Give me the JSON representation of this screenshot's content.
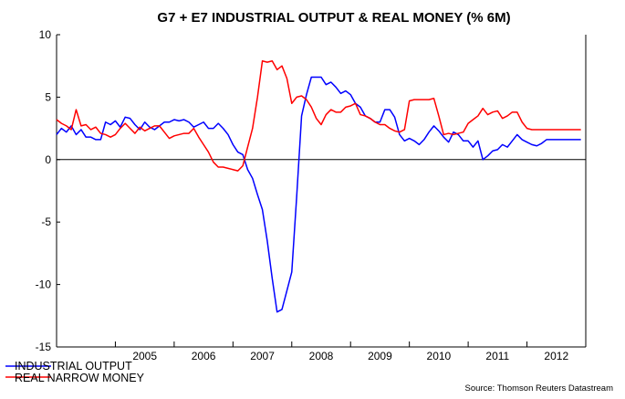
{
  "chart_data": {
    "type": "line",
    "title": "G7 + E7 INDUSTRIAL OUTPUT & REAL MONEY (% 6M)",
    "xlabel": "",
    "ylabel": "",
    "ylim": [
      -15,
      10
    ],
    "y_ticks": [
      10,
      5,
      0,
      -5,
      -10,
      -15
    ],
    "x_range": [
      2004.0,
      2013.0
    ],
    "year_labels": [
      "2005",
      "2006",
      "2007",
      "2008",
      "2009",
      "2010",
      "2011",
      "2012"
    ],
    "zero_line": true,
    "series": [
      {
        "name": "INDUSTRIAL OUTPUT",
        "color": "#0000ff",
        "x": [
          2004.0,
          2004.083,
          2004.167,
          2004.25,
          2004.333,
          2004.417,
          2004.5,
          2004.583,
          2004.667,
          2004.75,
          2004.833,
          2004.917,
          2005.0,
          2005.083,
          2005.167,
          2005.25,
          2005.333,
          2005.417,
          2005.5,
          2005.583,
          2005.667,
          2005.75,
          2005.833,
          2005.917,
          2006.0,
          2006.083,
          2006.167,
          2006.25,
          2006.333,
          2006.417,
          2006.5,
          2006.583,
          2006.667,
          2006.75,
          2006.833,
          2006.917,
          2007.0,
          2007.083,
          2007.167,
          2007.25,
          2007.333,
          2007.417,
          2007.5,
          2007.583,
          2007.667,
          2007.75,
          2007.833,
          2007.917,
          2008.0,
          2008.083,
          2008.167,
          2008.25,
          2008.333,
          2008.417,
          2008.5,
          2008.583,
          2008.667,
          2008.75,
          2008.833,
          2008.917,
          2009.0,
          2009.083,
          2009.167,
          2009.25,
          2009.333,
          2009.417,
          2009.5,
          2009.583,
          2009.667,
          2009.75,
          2009.833,
          2009.917,
          2010.0,
          2010.083,
          2010.167,
          2010.25,
          2010.333,
          2010.417,
          2010.5,
          2010.583,
          2010.667,
          2010.75,
          2010.833,
          2010.917,
          2011.0,
          2011.083,
          2011.167,
          2011.25,
          2011.333,
          2011.417,
          2011.5,
          2011.583,
          2011.667,
          2011.75,
          2011.833,
          2011.917,
          2012.0,
          2012.083,
          2012.167,
          2012.25,
          2012.333,
          2012.417,
          2012.5,
          2012.583,
          2012.667,
          2012.75,
          2012.833,
          2012.917
        ],
        "values": [
          2.0,
          2.5,
          2.2,
          2.7,
          2.0,
          2.4,
          1.8,
          1.8,
          1.6,
          1.6,
          3.0,
          2.8,
          3.1,
          2.6,
          3.4,
          3.3,
          2.8,
          2.4,
          3.0,
          2.6,
          2.4,
          2.7,
          3.0,
          3.0,
          3.2,
          3.1,
          3.2,
          3.0,
          2.6,
          2.8,
          3.0,
          2.5,
          2.5,
          2.9,
          2.5,
          2.0,
          1.2,
          0.6,
          0.4,
          -0.8,
          -1.5,
          -2.8,
          -4.0,
          -6.5,
          -9.5,
          -12.2,
          -12.0,
          -10.5,
          -9.0,
          -3.0,
          3.5,
          5.2,
          6.6,
          6.6,
          6.6,
          6.0,
          6.2,
          5.8,
          5.3,
          5.5,
          5.2,
          4.5,
          4.2,
          3.5,
          3.3,
          3.0,
          3.0,
          4.0,
          4.0,
          3.4,
          2.0,
          1.5,
          1.7,
          1.5,
          1.2,
          1.6,
          2.2,
          2.7,
          2.3,
          1.8,
          1.4,
          2.2,
          2.0,
          1.5,
          1.5,
          1.0,
          1.5,
          0.0,
          0.3,
          0.7,
          0.8,
          1.2,
          1.0,
          1.5,
          2.0,
          1.6,
          1.4,
          1.2,
          1.1,
          1.3,
          1.6,
          1.6,
          1.6,
          1.6,
          1.6,
          1.6,
          1.6,
          1.6
        ]
      },
      {
        "name": "REAL NARROW MONEY",
        "color": "#ff0000",
        "x": [
          2004.0,
          2004.083,
          2004.167,
          2004.25,
          2004.333,
          2004.417,
          2004.5,
          2004.583,
          2004.667,
          2004.75,
          2004.833,
          2004.917,
          2005.0,
          2005.083,
          2005.167,
          2005.25,
          2005.333,
          2005.417,
          2005.5,
          2005.583,
          2005.667,
          2005.75,
          2005.833,
          2005.917,
          2006.0,
          2006.083,
          2006.167,
          2006.25,
          2006.333,
          2006.417,
          2006.5,
          2006.583,
          2006.667,
          2006.75,
          2006.833,
          2006.917,
          2007.0,
          2007.083,
          2007.167,
          2007.25,
          2007.333,
          2007.417,
          2007.5,
          2007.583,
          2007.667,
          2007.75,
          2007.833,
          2007.917,
          2008.0,
          2008.083,
          2008.167,
          2008.25,
          2008.333,
          2008.417,
          2008.5,
          2008.583,
          2008.667,
          2008.75,
          2008.833,
          2008.917,
          2009.0,
          2009.083,
          2009.167,
          2009.25,
          2009.333,
          2009.417,
          2009.5,
          2009.583,
          2009.667,
          2009.75,
          2009.833,
          2009.917,
          2010.0,
          2010.083,
          2010.167,
          2010.25,
          2010.333,
          2010.417,
          2010.5,
          2010.583,
          2010.667,
          2010.75,
          2010.833,
          2010.917,
          2011.0,
          2011.083,
          2011.167,
          2011.25,
          2011.333,
          2011.417,
          2011.5,
          2011.583,
          2011.667,
          2011.75,
          2011.833,
          2011.917,
          2012.0,
          2012.083,
          2012.167,
          2012.25,
          2012.333,
          2012.417,
          2012.5,
          2012.583,
          2012.667,
          2012.75,
          2012.833,
          2012.917
        ],
        "values": [
          3.2,
          2.9,
          2.7,
          2.4,
          4.0,
          2.7,
          2.8,
          2.4,
          2.6,
          2.1,
          2.0,
          1.8,
          2.0,
          2.5,
          2.9,
          2.5,
          2.1,
          2.6,
          2.3,
          2.5,
          2.7,
          2.7,
          2.2,
          1.7,
          1.9,
          2.0,
          2.1,
          2.1,
          2.5,
          1.8,
          1.2,
          0.6,
          -0.2,
          -0.6,
          -0.6,
          -0.7,
          -0.8,
          -0.9,
          -0.5,
          1.0,
          2.5,
          5.0,
          7.9,
          7.8,
          7.9,
          7.2,
          7.5,
          6.5,
          4.5,
          5.0,
          5.1,
          4.8,
          4.2,
          3.3,
          2.8,
          3.6,
          4.0,
          3.8,
          3.8,
          4.2,
          4.3,
          4.5,
          3.6,
          3.5,
          3.3,
          3.0,
          2.8,
          2.8,
          2.5,
          2.3,
          2.2,
          2.4,
          4.7,
          4.8,
          4.8,
          4.8,
          4.8,
          4.9,
          3.5,
          2.0,
          2.1,
          2.0,
          2.1,
          2.2,
          2.9,
          3.2,
          3.5,
          4.1,
          3.6,
          3.8,
          3.9,
          3.3,
          3.5,
          3.8,
          3.8,
          3.0,
          2.5,
          2.4,
          2.4,
          2.4,
          2.4,
          2.4,
          2.4,
          2.4,
          2.4,
          2.4,
          2.4,
          2.4
        ]
      }
    ],
    "legend_position": "bottom-left",
    "source": "Source: Thomson Reuters Datastream"
  }
}
